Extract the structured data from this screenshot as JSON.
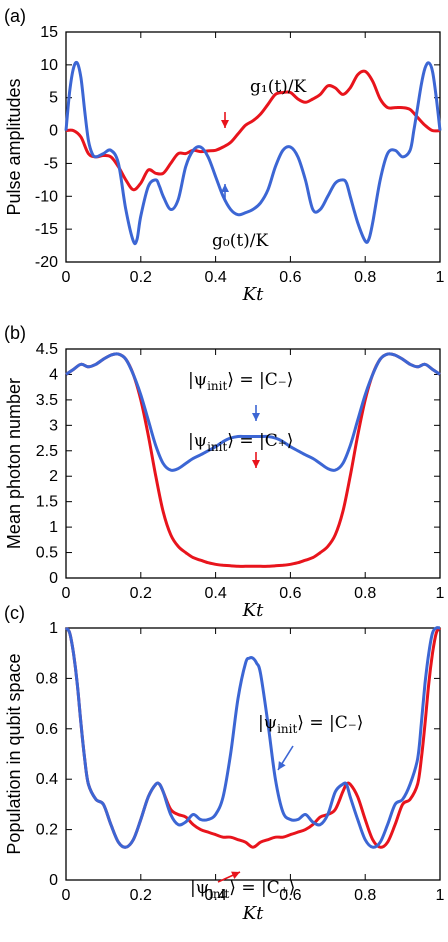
{
  "chart_data": [
    {
      "type": "line",
      "panel_label": "(a)",
      "xlabel": "Kt",
      "ylabel": "Pulse amplitudes",
      "xlim": [
        0,
        1
      ],
      "ylim": [
        -20,
        15
      ],
      "xticks": [
        0,
        0.2,
        0.4,
        0.6,
        0.8,
        1
      ],
      "xtick_labels": [
        "0",
        "0.2",
        "0.4",
        "0.6",
        "0.8",
        "1"
      ],
      "yticks": [
        -20,
        -15,
        -10,
        -5,
        0,
        5,
        10,
        15
      ],
      "ytick_labels": [
        "-20",
        "-15",
        "-10",
        "-5",
        "0",
        "5",
        "10",
        "15"
      ],
      "grid": false,
      "series": [
        {
          "name": "g₁(t)/K",
          "color": "#e8141c",
          "x": [
            0,
            0.02,
            0.04,
            0.06,
            0.08,
            0.1,
            0.12,
            0.14,
            0.16,
            0.18,
            0.2,
            0.22,
            0.24,
            0.26,
            0.28,
            0.3,
            0.32,
            0.34,
            0.36,
            0.38,
            0.4,
            0.42,
            0.44,
            0.46,
            0.48,
            0.5,
            0.52,
            0.54,
            0.56,
            0.58,
            0.6,
            0.62,
            0.64,
            0.66,
            0.68,
            0.7,
            0.72,
            0.74,
            0.76,
            0.78,
            0.8,
            0.82,
            0.84,
            0.86,
            0.88,
            0.9,
            0.92,
            0.94,
            0.96,
            0.98,
            1.0
          ],
          "y": [
            0,
            0,
            -1,
            -3.5,
            -4,
            -3.8,
            -4,
            -5.5,
            -7.5,
            -9,
            -8,
            -6,
            -6.5,
            -6.5,
            -5,
            -3.5,
            -3.5,
            -3,
            -3.2,
            -3.1,
            -3,
            -2.5,
            -1.8,
            -0.5,
            0.8,
            1.5,
            2.5,
            4,
            5.5,
            5.8,
            5.8,
            4.8,
            4.3,
            4.8,
            5.5,
            6.8,
            6.5,
            5.5,
            6.5,
            8.5,
            9,
            7.5,
            4.8,
            3.5,
            3.5,
            3.5,
            3.2,
            2,
            0.8,
            0,
            0
          ]
        },
        {
          "name": "g₀(t)/K",
          "color": "#3c66d4",
          "x": [
            0,
            0.01,
            0.02,
            0.03,
            0.04,
            0.05,
            0.06,
            0.07,
            0.08,
            0.1,
            0.12,
            0.14,
            0.16,
            0.18,
            0.19,
            0.2,
            0.22,
            0.24,
            0.25,
            0.26,
            0.28,
            0.3,
            0.32,
            0.34,
            0.36,
            0.38,
            0.4,
            0.42,
            0.44,
            0.46,
            0.48,
            0.5,
            0.52,
            0.54,
            0.56,
            0.58,
            0.6,
            0.62,
            0.64,
            0.66,
            0.68,
            0.7,
            0.72,
            0.74,
            0.75,
            0.76,
            0.78,
            0.8,
            0.81,
            0.82,
            0.84,
            0.86,
            0.88,
            0.9,
            0.92,
            0.93,
            0.94,
            0.95,
            0.96,
            0.97,
            0.98,
            0.99,
            1.0
          ],
          "y": [
            0,
            6,
            9.5,
            10.3,
            8,
            3,
            -1.5,
            -3.5,
            -4,
            -3.5,
            -3,
            -5,
            -12,
            -16.8,
            -16.5,
            -13,
            -8.5,
            -7.5,
            -8.5,
            -10,
            -12,
            -10.5,
            -5.5,
            -3,
            -2.5,
            -4,
            -7,
            -10,
            -12,
            -12.8,
            -12.5,
            -12,
            -11,
            -9,
            -5.5,
            -3,
            -2.5,
            -4,
            -7.5,
            -12,
            -12,
            -10,
            -8,
            -7.5,
            -8,
            -10,
            -14,
            -16.8,
            -16.5,
            -14,
            -7.5,
            -3.5,
            -3,
            -4,
            -3,
            0,
            3.5,
            7,
            9.5,
            10.3,
            9,
            5,
            0
          ]
        }
      ],
      "annotations": [
        {
          "text": "g₁(t)/K",
          "x": 0.42,
          "y": 6.5,
          "series": "g₁(t)/K"
        },
        {
          "text": "g₀(t)/K",
          "x": 0.42,
          "y": -16.5,
          "series": "g₀(t)/K"
        }
      ]
    },
    {
      "type": "line",
      "panel_label": "(b)",
      "xlabel": "Kt",
      "ylabel": "Mean photon number",
      "xlim": [
        0,
        1
      ],
      "ylim": [
        0,
        4.5
      ],
      "xticks": [
        0,
        0.2,
        0.4,
        0.6,
        0.8,
        1
      ],
      "xtick_labels": [
        "0",
        "0.2",
        "0.4",
        "0.6",
        "0.8",
        "1"
      ],
      "yticks": [
        0,
        0.5,
        1,
        1.5,
        2,
        2.5,
        3,
        3.5,
        4,
        4.5
      ],
      "ytick_labels": [
        "0",
        "0.5",
        "1",
        "1.5",
        "2",
        "2.5",
        "3",
        "3.5",
        "4",
        "4.5"
      ],
      "grid": false,
      "series": [
        {
          "name": "|ψ_init⟩ = |C₊⟩",
          "color": "#e8141c",
          "x": [
            0,
            0.02,
            0.04,
            0.06,
            0.08,
            0.1,
            0.12,
            0.14,
            0.16,
            0.18,
            0.2,
            0.22,
            0.24,
            0.26,
            0.28,
            0.3,
            0.32,
            0.34,
            0.36,
            0.38,
            0.4,
            0.42,
            0.44,
            0.46,
            0.48,
            0.5,
            0.52,
            0.54,
            0.56,
            0.58,
            0.6,
            0.62,
            0.64,
            0.66,
            0.68,
            0.7,
            0.72,
            0.74,
            0.76,
            0.78,
            0.8,
            0.82,
            0.84,
            0.86,
            0.88,
            0.9,
            0.92,
            0.94,
            0.96,
            0.98,
            1.0
          ],
          "y": [
            4,
            4.1,
            4.2,
            4.15,
            4.2,
            4.3,
            4.38,
            4.4,
            4.3,
            4.0,
            3.5,
            2.8,
            2.0,
            1.3,
            0.85,
            0.62,
            0.5,
            0.4,
            0.35,
            0.3,
            0.27,
            0.25,
            0.24,
            0.23,
            0.23,
            0.23,
            0.23,
            0.23,
            0.24,
            0.25,
            0.27,
            0.3,
            0.35,
            0.4,
            0.5,
            0.62,
            0.85,
            1.3,
            2.0,
            2.8,
            3.5,
            4.0,
            4.3,
            4.4,
            4.38,
            4.3,
            4.2,
            4.15,
            4.2,
            4.1,
            4
          ]
        },
        {
          "name": "|ψ_init⟩ = |C₋⟩",
          "color": "#3c66d4",
          "x": [
            0,
            0.02,
            0.04,
            0.06,
            0.08,
            0.1,
            0.12,
            0.14,
            0.16,
            0.18,
            0.2,
            0.22,
            0.24,
            0.26,
            0.28,
            0.3,
            0.32,
            0.34,
            0.36,
            0.38,
            0.4,
            0.42,
            0.44,
            0.46,
            0.48,
            0.5,
            0.52,
            0.54,
            0.56,
            0.58,
            0.6,
            0.62,
            0.64,
            0.66,
            0.68,
            0.7,
            0.72,
            0.74,
            0.76,
            0.78,
            0.8,
            0.82,
            0.84,
            0.86,
            0.88,
            0.9,
            0.92,
            0.94,
            0.96,
            0.98,
            1.0
          ],
          "y": [
            4,
            4.1,
            4.2,
            4.15,
            4.2,
            4.3,
            4.38,
            4.4,
            4.3,
            4.0,
            3.6,
            3.1,
            2.6,
            2.25,
            2.12,
            2.15,
            2.25,
            2.35,
            2.42,
            2.5,
            2.58,
            2.68,
            2.75,
            2.78,
            2.78,
            2.78,
            2.78,
            2.78,
            2.75,
            2.68,
            2.58,
            2.5,
            2.42,
            2.35,
            2.25,
            2.15,
            2.12,
            2.25,
            2.6,
            3.1,
            3.6,
            4.0,
            4.3,
            4.4,
            4.38,
            4.3,
            4.2,
            4.15,
            4.2,
            4.1,
            4
          ]
        }
      ],
      "annotations": [
        {
          "text_prefix": "|ψ",
          "text_sub": "init",
          "text_suffix": "⟩ = |C₋⟩",
          "x": 0.5,
          "y": 3.55,
          "series": "|ψ_init⟩ = |C₋⟩"
        },
        {
          "text_prefix": "|ψ",
          "text_sub": "init",
          "text_suffix": "⟩ = |C₊⟩",
          "x": 0.5,
          "y": 1.35,
          "series": "|ψ_init⟩ = |C₊⟩"
        }
      ]
    },
    {
      "type": "line",
      "panel_label": "(c)",
      "xlabel": "Kt",
      "ylabel": "Population in qubit space",
      "xlim": [
        0,
        1
      ],
      "ylim": [
        0,
        1
      ],
      "xticks": [
        0,
        0.2,
        0.4,
        0.6,
        0.8,
        1
      ],
      "xtick_labels": [
        "0",
        "0.2",
        "0.4",
        "0.6",
        "0.8",
        "1"
      ],
      "yticks": [
        0,
        0.2,
        0.4,
        0.6,
        0.8,
        1
      ],
      "ytick_labels": [
        "0",
        "0.2",
        "0.4",
        "0.6",
        "0.8",
        "1"
      ],
      "grid": false,
      "series": [
        {
          "name": "|ψ_init⟩ = |C₊⟩",
          "color": "#e8141c",
          "x": [
            0,
            0.01,
            0.02,
            0.03,
            0.04,
            0.05,
            0.06,
            0.08,
            0.1,
            0.12,
            0.14,
            0.16,
            0.18,
            0.2,
            0.22,
            0.24,
            0.25,
            0.26,
            0.28,
            0.3,
            0.32,
            0.34,
            0.36,
            0.38,
            0.4,
            0.42,
            0.44,
            0.46,
            0.48,
            0.5,
            0.52,
            0.54,
            0.56,
            0.58,
            0.6,
            0.62,
            0.64,
            0.66,
            0.68,
            0.7,
            0.72,
            0.74,
            0.75,
            0.76,
            0.78,
            0.8,
            0.82,
            0.84,
            0.86,
            0.88,
            0.9,
            0.92,
            0.94,
            0.95,
            0.96,
            0.97,
            0.98,
            0.99,
            1.0
          ],
          "y": [
            1,
            0.98,
            0.9,
            0.78,
            0.62,
            0.48,
            0.38,
            0.32,
            0.3,
            0.22,
            0.15,
            0.13,
            0.16,
            0.24,
            0.33,
            0.38,
            0.38,
            0.35,
            0.28,
            0.26,
            0.25,
            0.22,
            0.2,
            0.19,
            0.18,
            0.17,
            0.17,
            0.16,
            0.15,
            0.13,
            0.15,
            0.16,
            0.17,
            0.17,
            0.18,
            0.19,
            0.2,
            0.22,
            0.25,
            0.26,
            0.28,
            0.35,
            0.38,
            0.38,
            0.33,
            0.24,
            0.16,
            0.13,
            0.15,
            0.22,
            0.3,
            0.32,
            0.38,
            0.48,
            0.62,
            0.78,
            0.9,
            0.98,
            1
          ]
        },
        {
          "name": "|ψ_init⟩ = |C₋⟩",
          "color": "#3c66d4",
          "x": [
            0,
            0.01,
            0.02,
            0.03,
            0.04,
            0.05,
            0.06,
            0.08,
            0.1,
            0.12,
            0.14,
            0.16,
            0.18,
            0.2,
            0.22,
            0.24,
            0.25,
            0.26,
            0.28,
            0.3,
            0.32,
            0.34,
            0.36,
            0.38,
            0.4,
            0.42,
            0.44,
            0.46,
            0.48,
            0.49,
            0.5,
            0.51,
            0.52,
            0.54,
            0.56,
            0.58,
            0.6,
            0.62,
            0.64,
            0.66,
            0.68,
            0.7,
            0.72,
            0.74,
            0.75,
            0.76,
            0.78,
            0.8,
            0.82,
            0.84,
            0.86,
            0.88,
            0.9,
            0.92,
            0.94,
            0.95,
            0.96,
            0.97,
            0.98,
            0.99,
            1.0
          ],
          "y": [
            1,
            0.98,
            0.9,
            0.78,
            0.62,
            0.48,
            0.38,
            0.32,
            0.3,
            0.22,
            0.15,
            0.13,
            0.16,
            0.24,
            0.33,
            0.38,
            0.38,
            0.35,
            0.26,
            0.22,
            0.23,
            0.26,
            0.24,
            0.24,
            0.26,
            0.33,
            0.5,
            0.72,
            0.86,
            0.88,
            0.88,
            0.86,
            0.82,
            0.62,
            0.4,
            0.27,
            0.24,
            0.24,
            0.26,
            0.23,
            0.22,
            0.26,
            0.35,
            0.38,
            0.38,
            0.33,
            0.24,
            0.16,
            0.13,
            0.15,
            0.22,
            0.3,
            0.32,
            0.38,
            0.48,
            0.62,
            0.78,
            0.9,
            0.98,
            1,
            1
          ]
        }
      ],
      "annotations": [
        {
          "text_prefix": "|ψ",
          "text_sub": "init",
          "text_suffix": "⟩ = |C₋⟩",
          "x": 0.72,
          "y": 0.76,
          "series": "|ψ_init⟩ = |C₋⟩"
        },
        {
          "text_prefix": "|ψ",
          "text_sub": "init",
          "text_suffix": "⟩ = |C₊⟩",
          "x": 0.5,
          "y": 0.035,
          "series": "|ψ_init⟩ = |C₊⟩"
        }
      ]
    }
  ]
}
